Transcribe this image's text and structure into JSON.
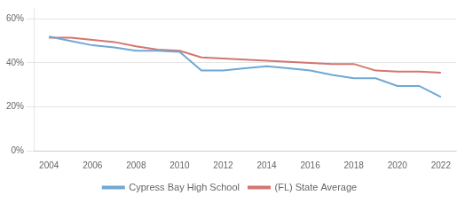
{
  "chart_data": {
    "type": "line",
    "x": [
      2004,
      2005,
      2006,
      2007,
      2008,
      2009,
      2010,
      2011,
      2012,
      2013,
      2014,
      2015,
      2016,
      2017,
      2018,
      2019,
      2020,
      2021,
      2022
    ],
    "series": [
      {
        "name": "Cypress Bay High School",
        "color": "#6fa8d4",
        "values": [
          0.52,
          0.5,
          0.48,
          0.47,
          0.455,
          0.455,
          0.45,
          0.365,
          0.365,
          0.375,
          0.385,
          0.375,
          0.365,
          0.345,
          0.33,
          0.33,
          0.295,
          0.295,
          0.245
        ]
      },
      {
        "name": "(FL) State Average",
        "color": "#d4756f",
        "values": [
          0.515,
          0.515,
          0.505,
          0.495,
          0.475,
          0.46,
          0.455,
          0.425,
          0.42,
          0.415,
          0.41,
          0.405,
          0.4,
          0.395,
          0.395,
          0.365,
          0.36,
          0.36,
          0.355
        ]
      }
    ],
    "xlim": [
      2003.3,
      2022.7
    ],
    "xticks": [
      2004,
      2006,
      2008,
      2010,
      2012,
      2014,
      2016,
      2018,
      2020,
      2022
    ],
    "ylim": [
      0,
      0.65
    ],
    "yticks": [
      {
        "value": 0.0,
        "label": "0%"
      },
      {
        "value": 0.2,
        "label": "20%"
      },
      {
        "value": 0.4,
        "label": "40%"
      },
      {
        "value": 0.6,
        "label": "60%"
      }
    ],
    "grid": "y",
    "legend": "bottom"
  }
}
